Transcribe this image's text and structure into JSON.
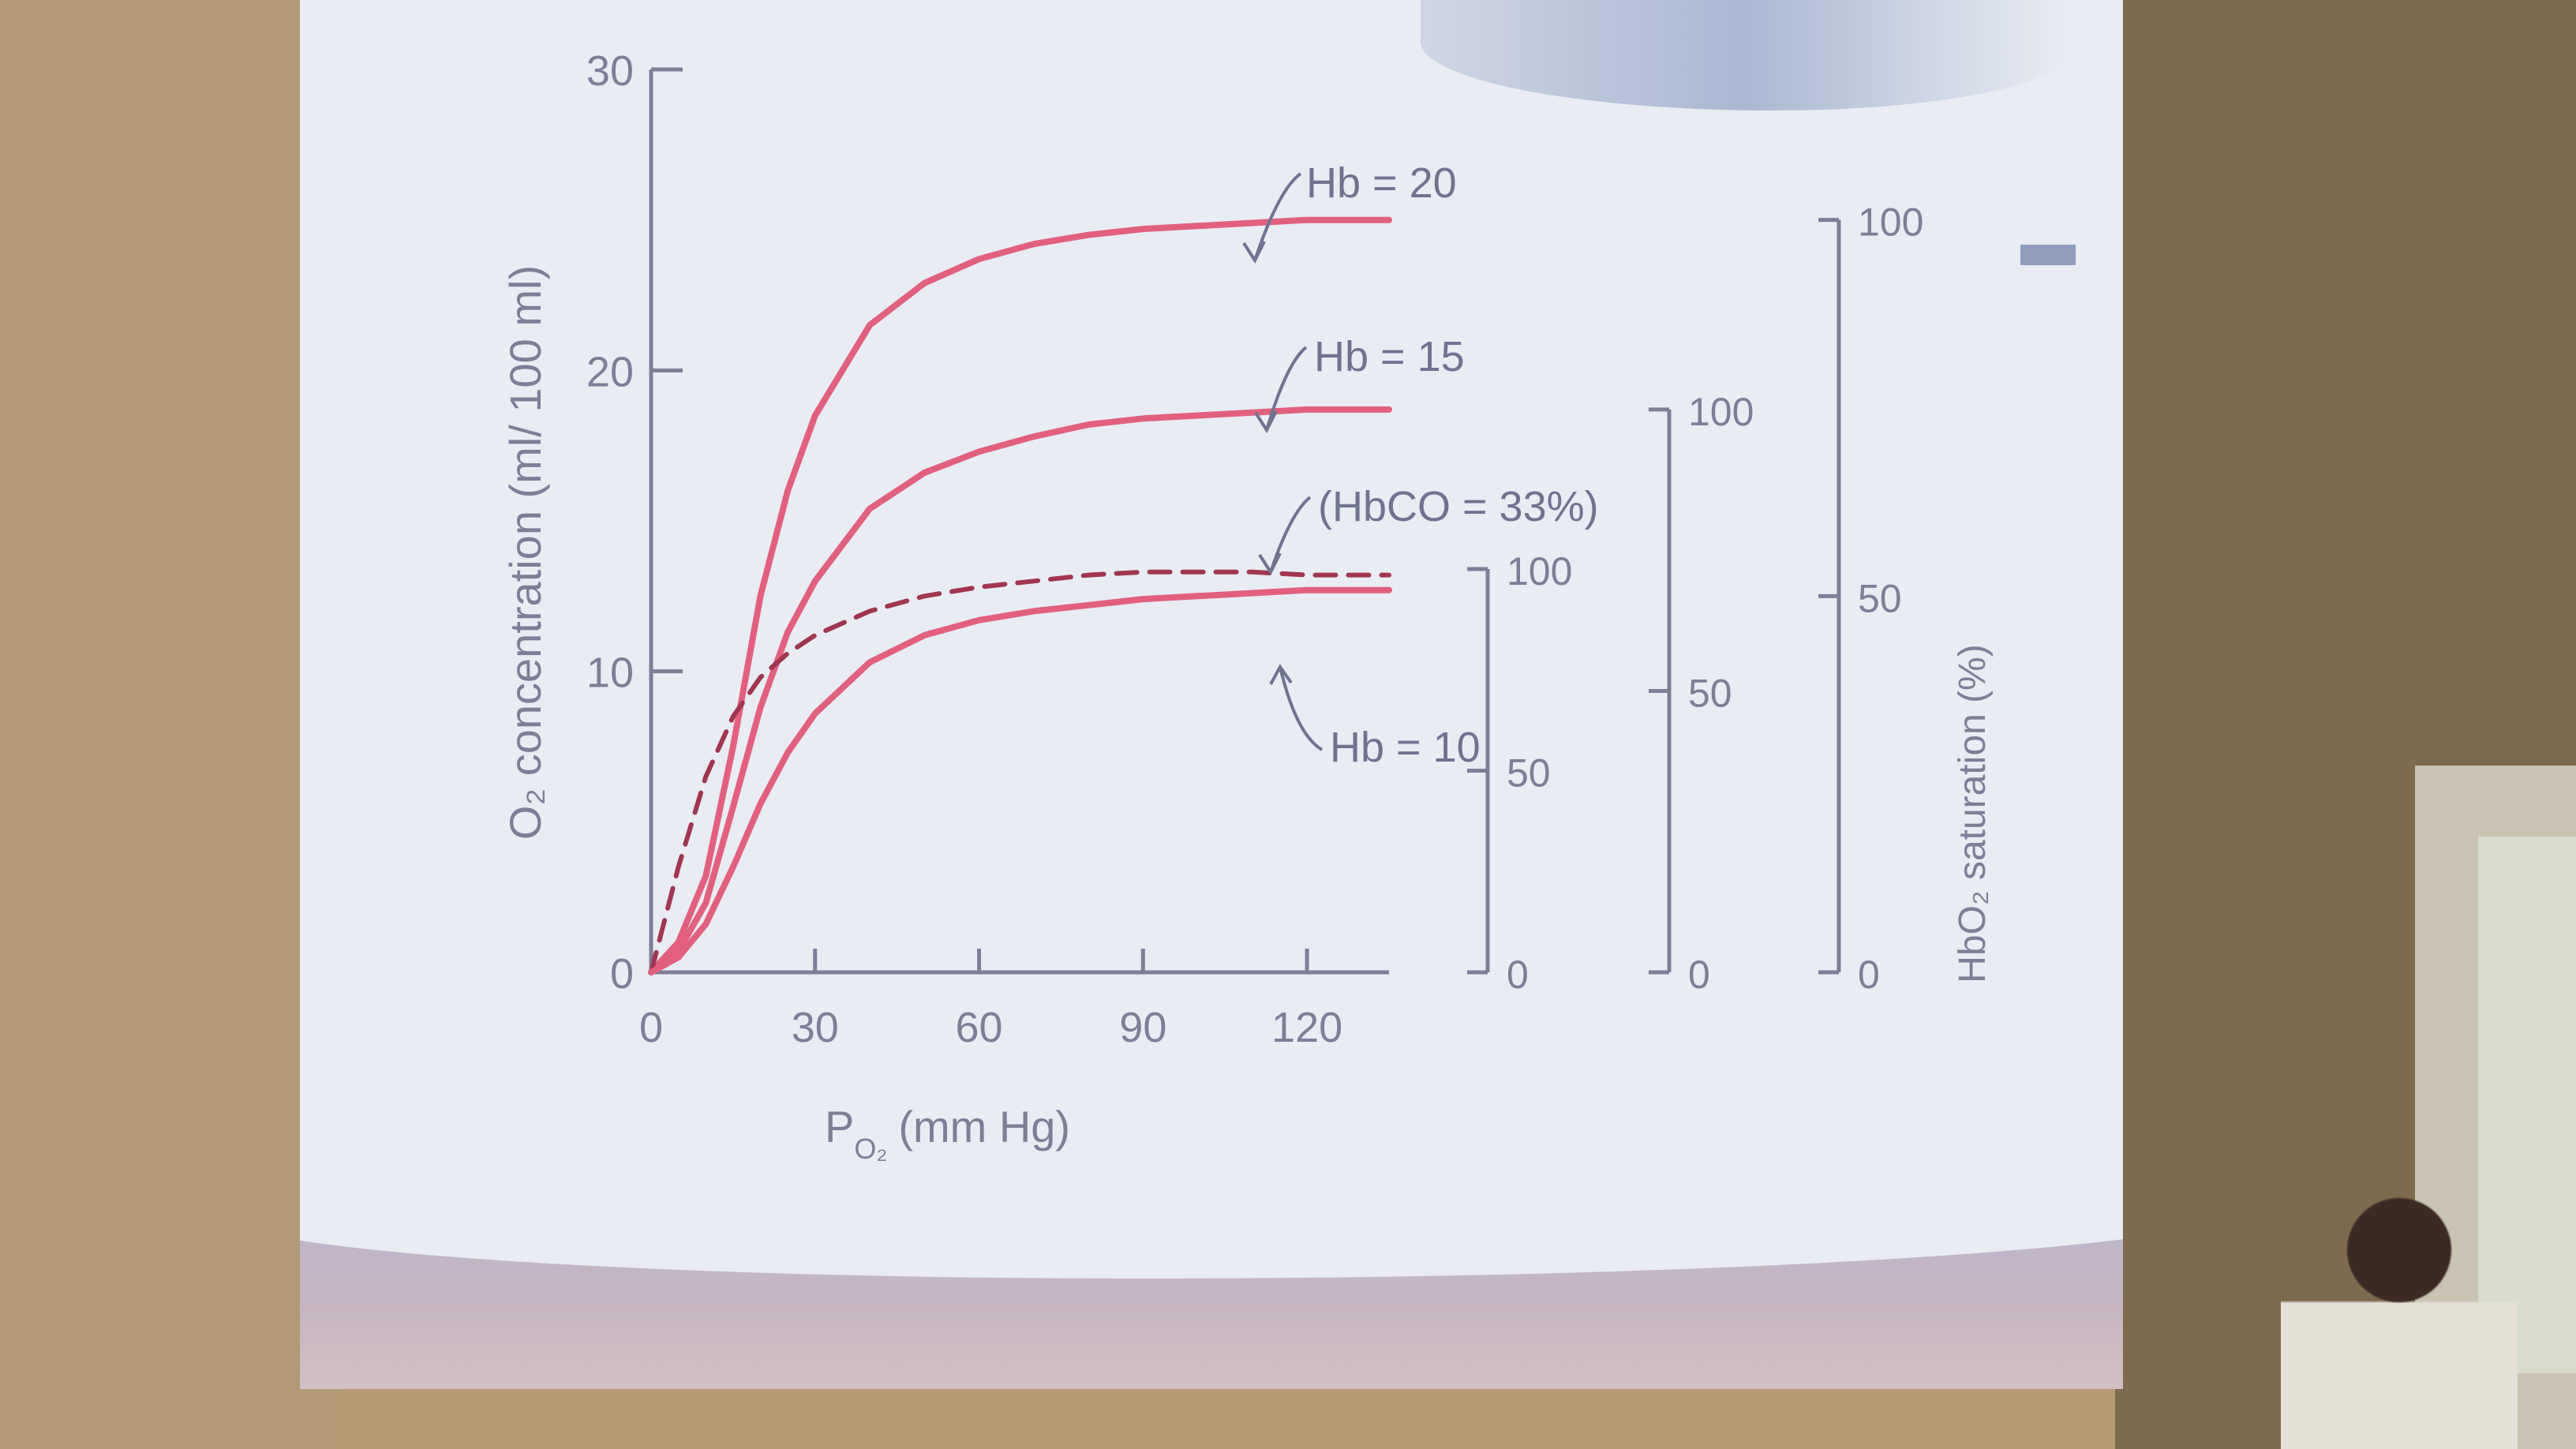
{
  "chart_data": {
    "type": "line",
    "xlabel": "P",
    "xlabel_subscript": "O₂",
    "xlabel_unit": "(mm Hg)",
    "ylabel": "O₂ concentration (ml/ 100 ml)",
    "xlim": [
      0,
      135
    ],
    "ylim": [
      0,
      30
    ],
    "x_ticks": [
      "0",
      "30",
      "60",
      "90",
      "120"
    ],
    "y_ticks": [
      "0",
      "10",
      "20",
      "30"
    ],
    "grid": false,
    "series": [
      {
        "name": "Hb = 20",
        "style": "solid",
        "color": "#e2607f",
        "x": [
          0,
          5,
          10,
          15,
          20,
          25,
          30,
          40,
          50,
          60,
          70,
          80,
          90,
          100,
          110,
          120,
          135
        ],
        "y": [
          0,
          1.0,
          3.2,
          7.5,
          12.5,
          16.0,
          18.5,
          21.5,
          22.9,
          23.7,
          24.2,
          24.5,
          24.7,
          24.8,
          24.9,
          25.0,
          25.0
        ]
      },
      {
        "name": "Hb = 15",
        "style": "solid",
        "color": "#e2607f",
        "x": [
          0,
          5,
          10,
          15,
          20,
          25,
          30,
          40,
          50,
          60,
          70,
          80,
          90,
          100,
          110,
          120,
          135
        ],
        "y": [
          0,
          0.7,
          2.3,
          5.5,
          8.8,
          11.3,
          13.0,
          15.4,
          16.6,
          17.3,
          17.8,
          18.2,
          18.4,
          18.5,
          18.6,
          18.7,
          18.7
        ]
      },
      {
        "name": "(HbCO = 33%)",
        "style": "dashed",
        "color": "#a03650",
        "x": [
          0,
          5,
          10,
          15,
          20,
          25,
          30,
          40,
          50,
          60,
          70,
          80,
          90,
          100,
          110,
          120,
          135
        ],
        "y": [
          0,
          3.5,
          6.5,
          8.5,
          9.8,
          10.6,
          11.2,
          12.0,
          12.5,
          12.8,
          13.0,
          13.2,
          13.3,
          13.3,
          13.3,
          13.2,
          13.2
        ]
      },
      {
        "name": "Hb = 10",
        "style": "solid",
        "color": "#e2607f",
        "x": [
          0,
          5,
          10,
          15,
          20,
          25,
          30,
          40,
          50,
          60,
          70,
          80,
          90,
          100,
          110,
          120,
          135
        ],
        "y": [
          0,
          0.5,
          1.6,
          3.5,
          5.6,
          7.3,
          8.6,
          10.3,
          11.2,
          11.7,
          12.0,
          12.2,
          12.4,
          12.5,
          12.6,
          12.7,
          12.7
        ]
      }
    ],
    "annotations": [
      "Hb = 20",
      "Hb = 15",
      "(HbCO = 33%)",
      "Hb = 10"
    ],
    "secondary_axes": [
      {
        "name": "HbO₂ saturation (%) — Hb 10",
        "ticks": [
          "0",
          "50",
          "100"
        ]
      },
      {
        "name": "HbO₂ saturation (%) — Hb 15",
        "ticks": [
          "0",
          "50",
          "100"
        ]
      },
      {
        "name": "HbO₂ saturation (%) — Hb 20",
        "ticks": [
          "0",
          "50",
          "100"
        ]
      }
    ],
    "secondary_ylabel": "HbO₂ saturation (%)"
  },
  "colors": {
    "curve": "#e2607f",
    "dashed_curve": "#a03650",
    "axis": "#7c7f96",
    "slide_bg": "#e9ecf3"
  }
}
